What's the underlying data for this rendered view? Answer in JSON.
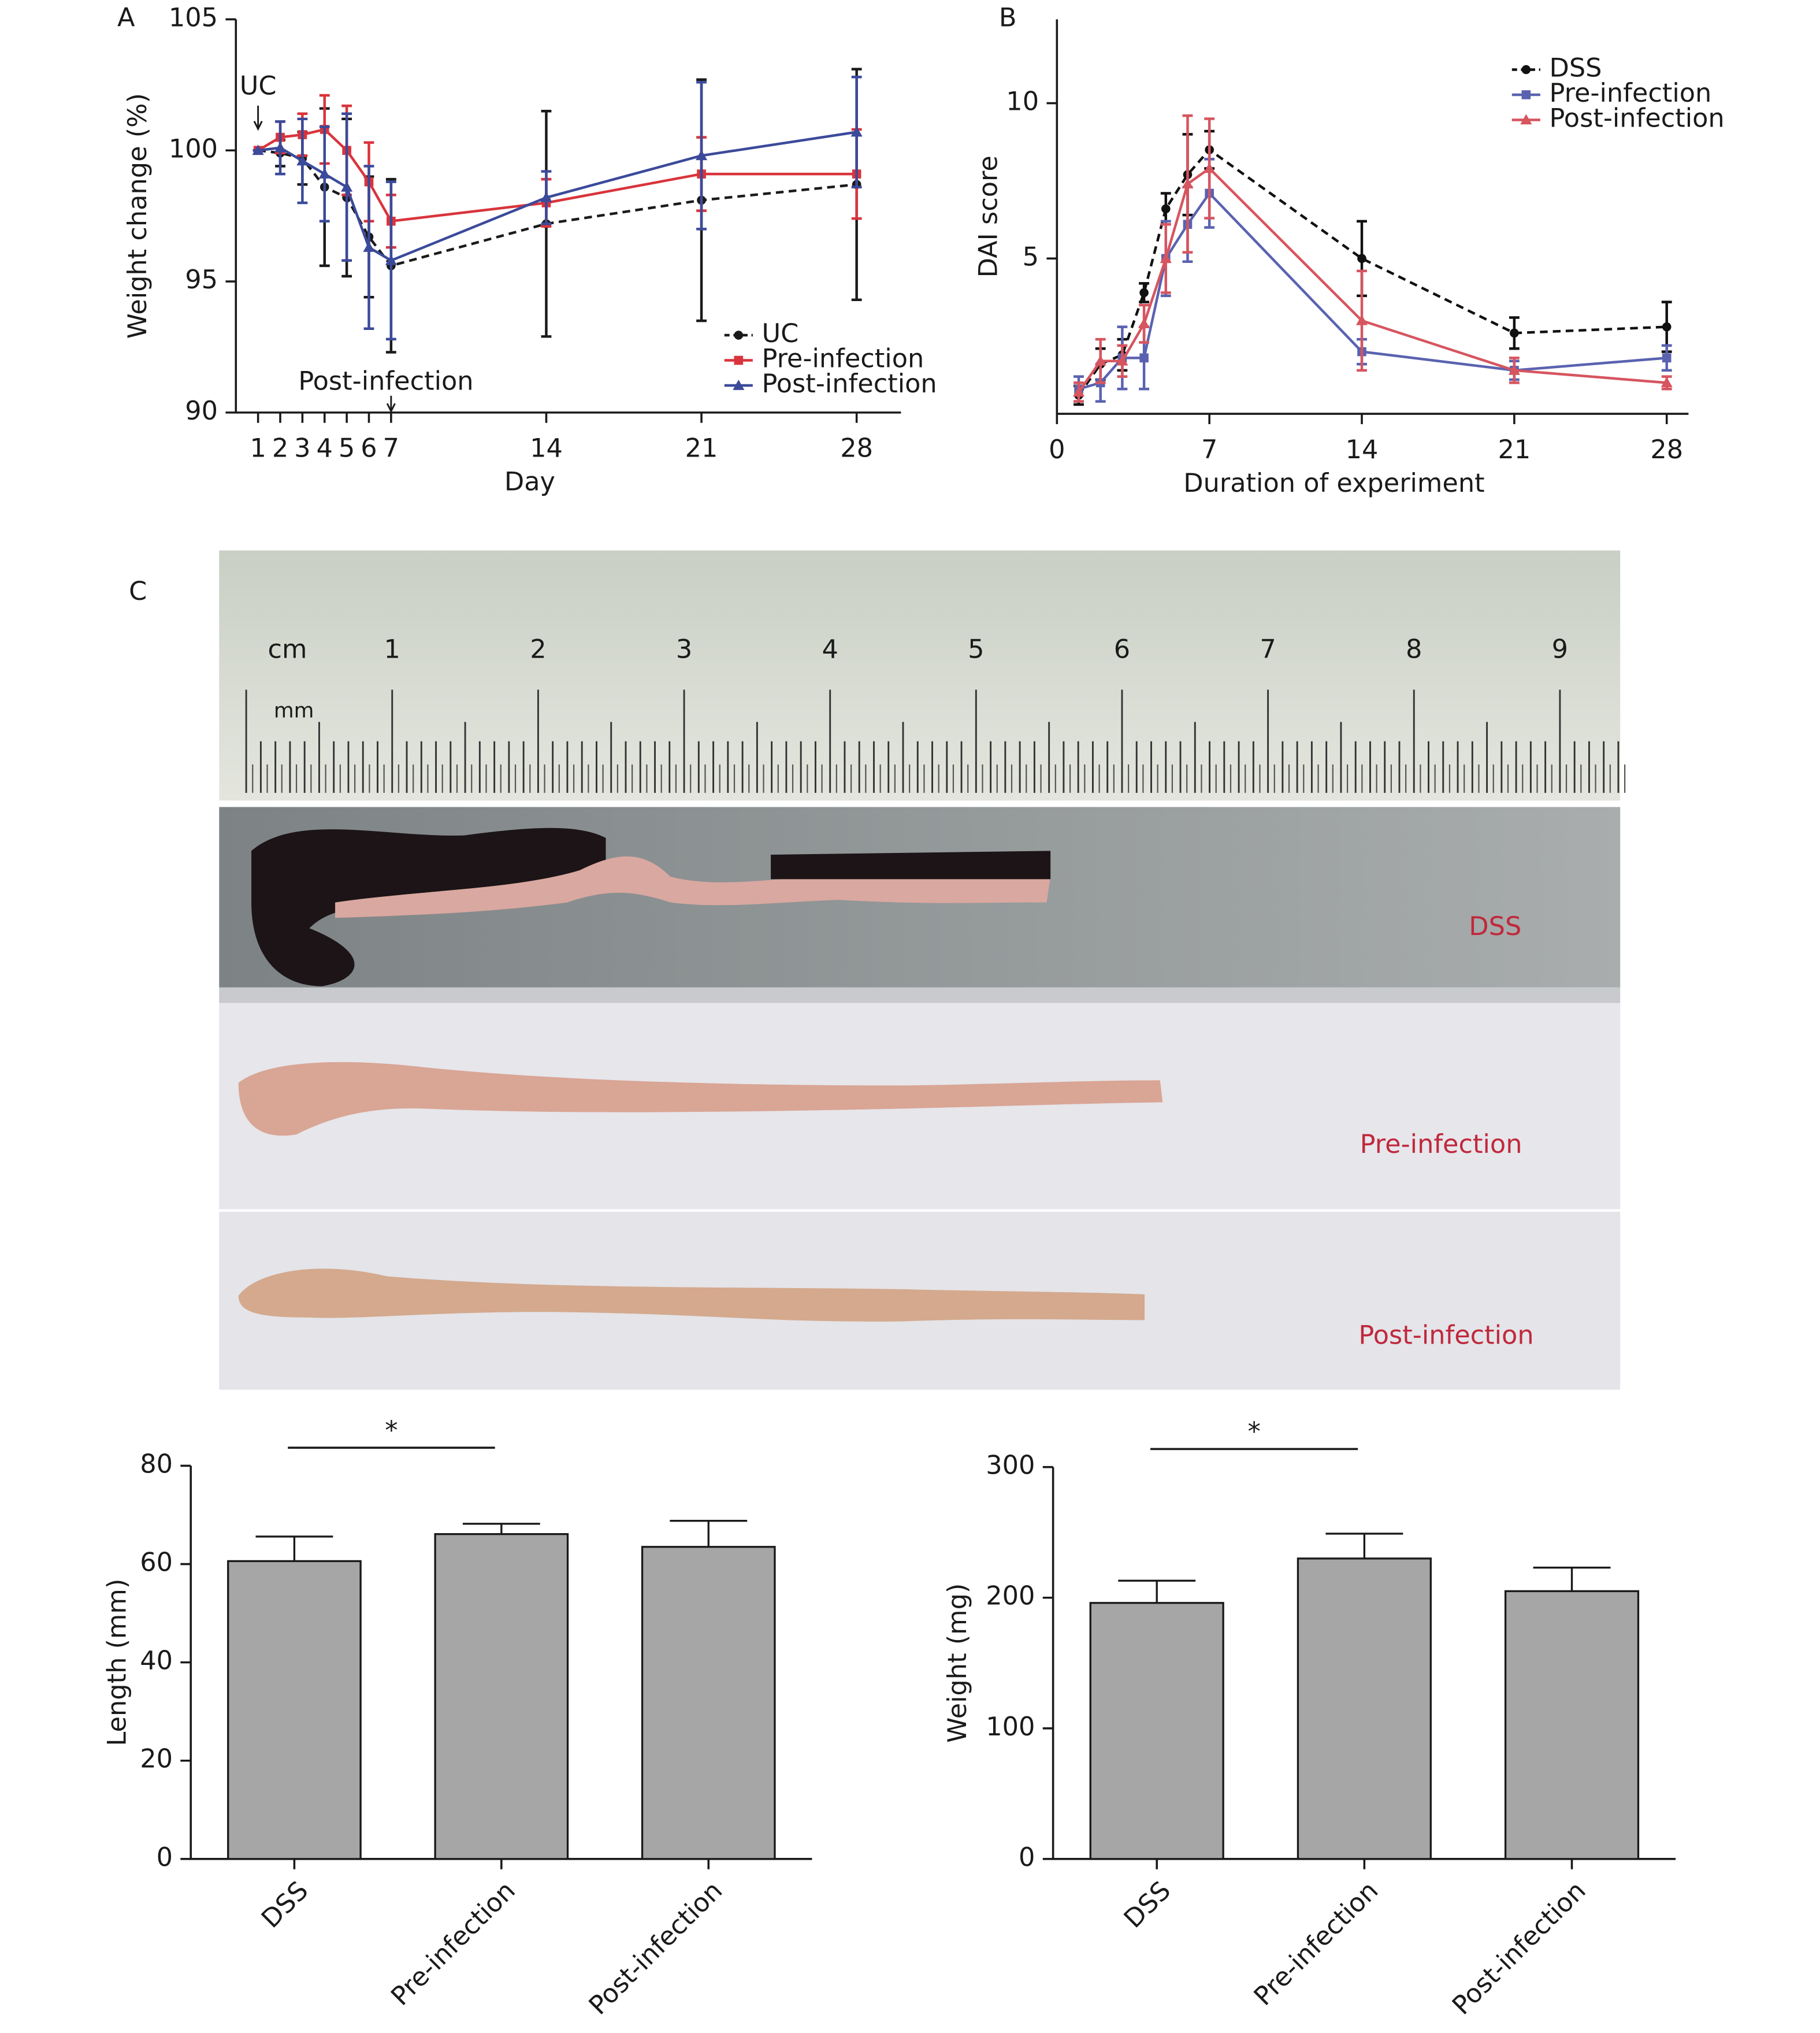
{
  "chart_data": [
    {
      "type": "line",
      "panel": "A",
      "x_label": "Day",
      "y_label": "Weight change (%)",
      "x": [
        1,
        2,
        3,
        4,
        5,
        6,
        7,
        14,
        21,
        28
      ],
      "xlim": [
        0,
        30
      ],
      "xticks": [
        1,
        2,
        3,
        4,
        5,
        6,
        7,
        14,
        21,
        28
      ],
      "ylim": [
        90,
        105
      ],
      "yticks": [
        90,
        95,
        100,
        105
      ],
      "legend": "lower right",
      "annotations": [
        "UC",
        "Post-infection"
      ],
      "series": [
        {
          "name": "UC",
          "color": "#1a1a1a",
          "marker": "circle",
          "dash": true,
          "values": [
            100,
            99.9,
            99.7,
            98.6,
            98.2,
            96.7,
            95.6,
            97.2,
            98.1,
            98.7
          ],
          "errors": [
            0,
            0.5,
            1,
            3,
            3,
            2.3,
            3.3,
            4.3,
            4.6,
            4.4
          ]
        },
        {
          "name": "Pre-infection",
          "color": "#d9343c",
          "marker": "square",
          "dash": false,
          "values": [
            100,
            100.5,
            100.6,
            100.8,
            100,
            98.8,
            97.3,
            98,
            99.1,
            99.1
          ],
          "errors": [
            0,
            0.6,
            0.8,
            1.3,
            1.7,
            1.5,
            1,
            0.9,
            1.4,
            1.7
          ]
        },
        {
          "name": "Post-infection",
          "color": "#3b4a9a",
          "marker": "triangle",
          "dash": false,
          "values": [
            100,
            100.1,
            99.6,
            99.1,
            98.6,
            96.3,
            95.8,
            98.2,
            99.8,
            100.7
          ],
          "errors": [
            0,
            1,
            1.6,
            1.8,
            2.8,
            3.1,
            3,
            1,
            2.8,
            2.1
          ]
        }
      ]
    },
    {
      "type": "line",
      "panel": "B",
      "x_label": "Duration of experiment",
      "y_label": "DAI score",
      "x": [
        1,
        2,
        3,
        4,
        5,
        6,
        7,
        14,
        21,
        28
      ],
      "xlim": [
        0,
        29
      ],
      "xticks": [
        0,
        7,
        14,
        21,
        28
      ],
      "ylim": [
        0,
        12.7
      ],
      "yticks": [
        5,
        10
      ],
      "legend": "upper right",
      "series": [
        {
          "name": "DSS",
          "color": "#111111",
          "marker": "circle",
          "dash": true,
          "values": [
            0.6,
            1.6,
            1.9,
            3.9,
            6.6,
            7.7,
            8.5,
            5,
            2.6,
            2.8
          ],
          "errors": [
            0.3,
            0.5,
            0.5,
            0.3,
            0.5,
            1.3,
            0.6,
            1.2,
            0.5,
            0.8
          ]
        },
        {
          "name": "Pre-infection",
          "color": "#5a62b0",
          "marker": "square",
          "dash": false,
          "values": [
            0.8,
            1,
            1.8,
            1.8,
            5,
            6.1,
            7.1,
            2,
            1.4,
            1.8
          ],
          "errors": [
            0.4,
            0.6,
            1,
            1,
            1.2,
            1.2,
            1.1,
            0.4,
            0.3,
            0.4
          ]
        },
        {
          "name": "Post-infection",
          "color": "#d6555f",
          "marker": "triangle",
          "dash": false,
          "values": [
            0.7,
            1.7,
            1.7,
            2.9,
            5,
            7.4,
            7.9,
            3,
            1.4,
            1
          ],
          "errors": [
            0.3,
            0.7,
            0.5,
            0.6,
            1.1,
            2.2,
            1.6,
            1.6,
            0.4,
            0.2
          ]
        }
      ]
    },
    {
      "type": "bar",
      "y_label": "Length (mm)",
      "annotation": "*",
      "categories": [
        "DSS",
        "Pre-infection",
        "Post-infection"
      ],
      "values": [
        60.6,
        66.1,
        63.5
      ],
      "errors": [
        5,
        2.1,
        5.3
      ],
      "color": "#a6a6a6",
      "ylim": [
        0,
        80
      ],
      "yticks": [
        0,
        20,
        40,
        60,
        80
      ]
    },
    {
      "type": "bar",
      "y_label": "Weight (mg)",
      "annotation": "*",
      "categories": [
        "DSS",
        "Pre-infection",
        "Post-infection"
      ],
      "values": [
        196,
        230,
        205
      ],
      "errors": [
        17,
        19,
        18
      ],
      "color": "#a6a6a6",
      "ylim": [
        0,
        300
      ],
      "yticks": [
        0,
        100,
        200,
        300
      ]
    }
  ],
  "photo": {
    "panel": "C",
    "unit_cm": "cm",
    "unit_mm": "mm",
    "ruler_labels": [
      "1",
      "2",
      "3",
      "4",
      "5",
      "6",
      "7",
      "8",
      "9"
    ],
    "samples": [
      "DSS",
      "Pre-infection",
      "Post-infection"
    ]
  }
}
